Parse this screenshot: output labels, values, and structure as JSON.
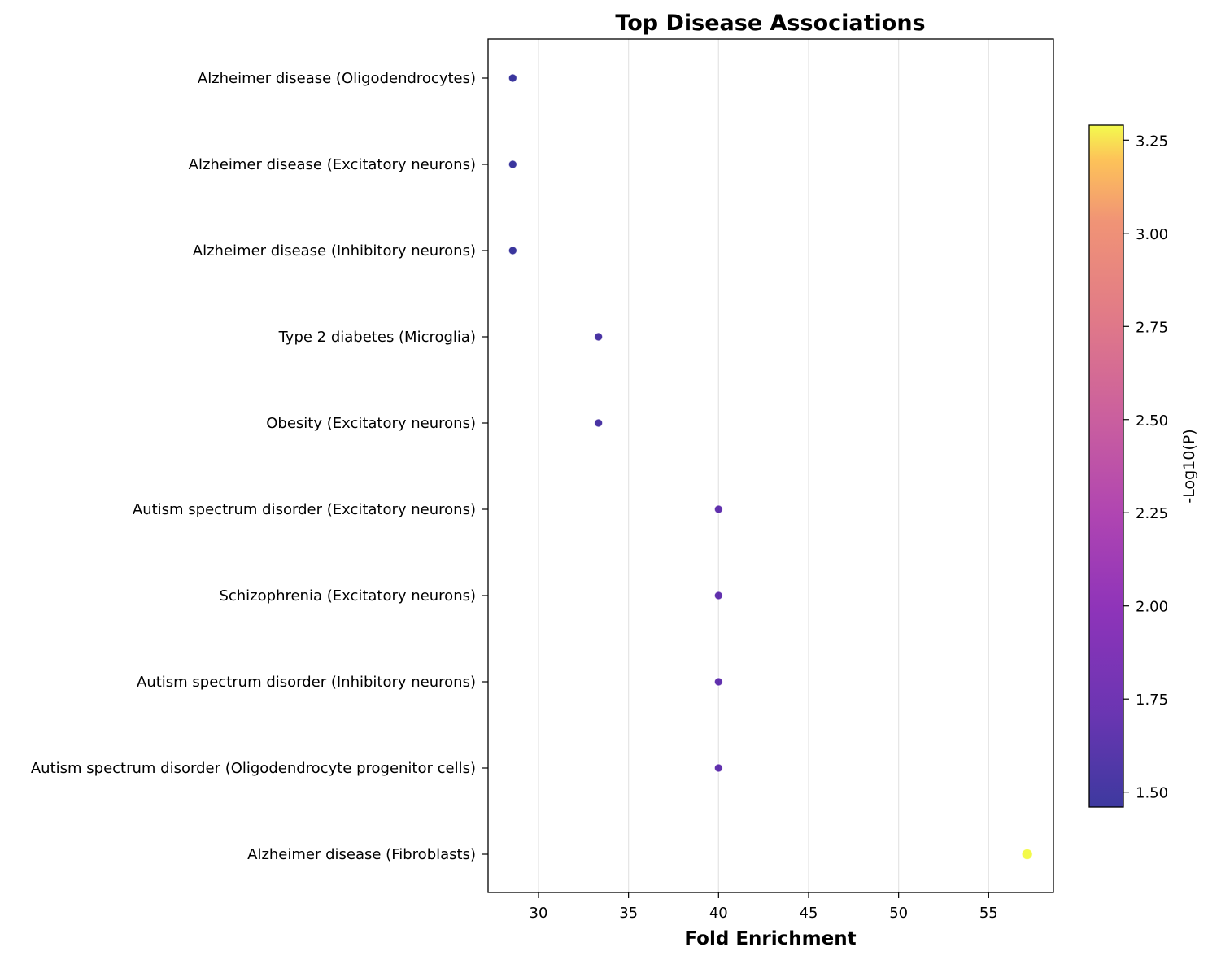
{
  "chart_data": {
    "type": "scatter",
    "title": "Top Disease Associations",
    "xlabel": "Fold Enrichment",
    "ylabel": "",
    "xlim": [
      27.2,
      58.6
    ],
    "xticks": [
      30,
      35,
      40,
      45,
      50,
      55
    ],
    "grid": "vertical",
    "categories": [
      "Alzheimer disease (Oligodendrocytes)",
      "Alzheimer disease (Excitatory neurons)",
      "Alzheimer disease (Inhibitory neurons)",
      "Type 2 diabetes (Microglia)",
      "Obesity (Excitatory neurons)",
      "Autism spectrum disorder (Excitatory neurons)",
      "Schizophrenia (Excitatory neurons)",
      "Autism spectrum disorder (Inhibitory neurons)",
      "Autism spectrum disorder (Oligodendrocyte progenitor cells)",
      "Alzheimer disease (Fibroblasts)"
    ],
    "points": [
      {
        "category": "Alzheimer disease (Oligodendrocytes)",
        "fold_enrichment": 28.57,
        "neg_log10_p": 1.47
      },
      {
        "category": "Alzheimer disease (Excitatory neurons)",
        "fold_enrichment": 28.57,
        "neg_log10_p": 1.47
      },
      {
        "category": "Alzheimer disease (Inhibitory neurons)",
        "fold_enrichment": 28.57,
        "neg_log10_p": 1.47
      },
      {
        "category": "Type 2 diabetes (Microglia)",
        "fold_enrichment": 33.33,
        "neg_log10_p": 1.55
      },
      {
        "category": "Obesity (Excitatory neurons)",
        "fold_enrichment": 33.33,
        "neg_log10_p": 1.55
      },
      {
        "category": "Autism spectrum disorder (Excitatory neurons)",
        "fold_enrichment": 40.0,
        "neg_log10_p": 1.68
      },
      {
        "category": "Schizophrenia (Excitatory neurons)",
        "fold_enrichment": 40.0,
        "neg_log10_p": 1.68
      },
      {
        "category": "Autism spectrum disorder (Inhibitory neurons)",
        "fold_enrichment": 40.0,
        "neg_log10_p": 1.68
      },
      {
        "category": "Autism spectrum disorder (Oligodendrocyte progenitor cells)",
        "fold_enrichment": 40.0,
        "neg_log10_p": 1.68
      },
      {
        "category": "Alzheimer disease (Fibroblasts)",
        "fold_enrichment": 57.14,
        "neg_log10_p": 3.29
      }
    ],
    "colorbar": {
      "label": "-Log10(P)",
      "colormap": "plasma",
      "range": [
        1.46,
        3.29
      ],
      "ticks": [
        "1.50",
        "1.75",
        "2.00",
        "2.25",
        "2.50",
        "2.75",
        "3.00",
        "3.25"
      ]
    }
  }
}
